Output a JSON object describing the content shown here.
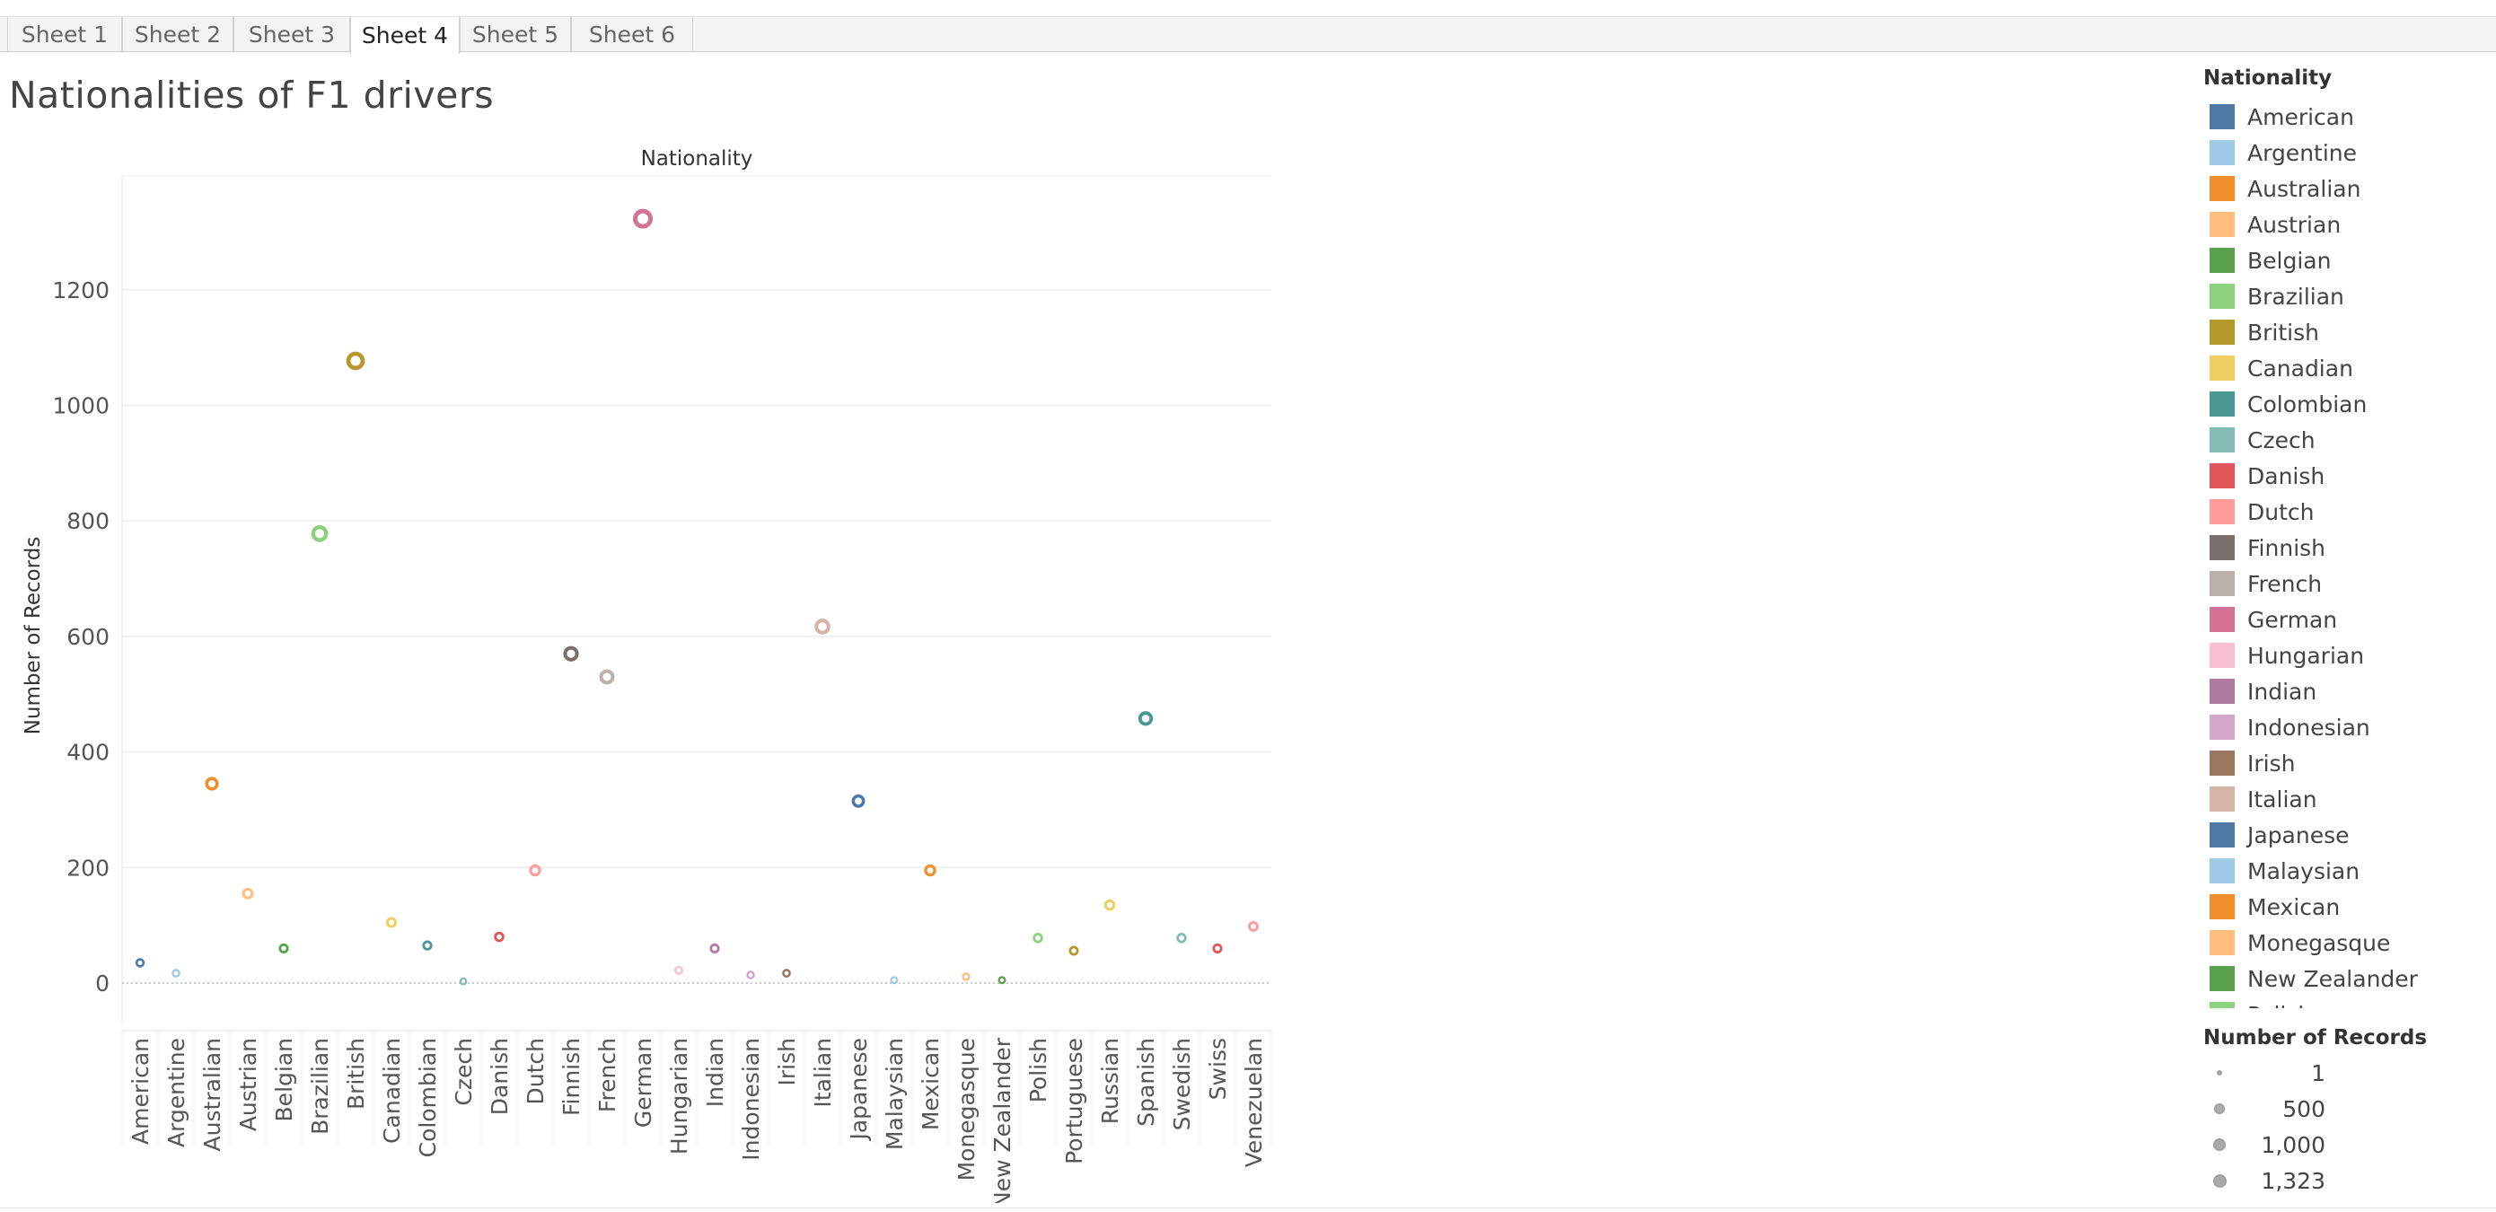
{
  "tabs": [
    {
      "label": "Sheet 1",
      "active": false
    },
    {
      "label": "Sheet 2",
      "active": false
    },
    {
      "label": "Sheet 3",
      "active": false
    },
    {
      "label": "Sheet 4",
      "active": true
    },
    {
      "label": "Sheet 5",
      "active": false
    },
    {
      "label": "Sheet 6",
      "active": false
    }
  ],
  "title": "Nationalities of F1 drivers",
  "chart_data": {
    "type": "scatter",
    "title": "Nationalities of F1 drivers",
    "column_header": "Nationality",
    "ylabel": "Number of Records",
    "ylim": [
      -70,
      1400
    ],
    "yticks": [
      0,
      200,
      400,
      600,
      800,
      1000,
      1200
    ],
    "grid": true,
    "marker_size_encodes": "Number of Records",
    "categories": [
      "American",
      "Argentine",
      "Australian",
      "Austrian",
      "Belgian",
      "Brazilian",
      "British",
      "Canadian",
      "Colombian",
      "Czech",
      "Danish",
      "Dutch",
      "Finnish",
      "French",
      "German",
      "Hungarian",
      "Indian",
      "Indonesian",
      "Irish",
      "Italian",
      "Japanese",
      "Malaysian",
      "Mexican",
      "Monegasque",
      "New Zealander",
      "Polish",
      "Portuguese",
      "Russian",
      "Spanish",
      "Swedish",
      "Swiss",
      "Venezuelan"
    ],
    "values": [
      35,
      17,
      345,
      155,
      60,
      778,
      1077,
      105,
      65,
      3,
      80,
      195,
      570,
      530,
      1323,
      22,
      60,
      14,
      17,
      617,
      315,
      5,
      195,
      11,
      5,
      78,
      56,
      135,
      458,
      78,
      60,
      98
    ],
    "colors": [
      "#4e79a7",
      "#a0cbe8",
      "#f28e2b",
      "#ffbe7d",
      "#59a14f",
      "#8cd17d",
      "#b6992d",
      "#f1ce63",
      "#499894",
      "#86bcb6",
      "#e15759",
      "#ff9d9a",
      "#79706e",
      "#bab0ac",
      "#d37295",
      "#fabfd2",
      "#b07aa1",
      "#d4a6c8",
      "#9d7660",
      "#d7b5a6",
      "#4e79a7",
      "#a0cbe8",
      "#f28e2b",
      "#ffbe7d",
      "#59a14f",
      "#8cd17d",
      "#b6992d",
      "#f1ce63",
      "#499894",
      "#86bcb6",
      "#e15759",
      "#ff9d9a"
    ]
  },
  "legend": {
    "nationality_title": "Nationality",
    "nationality_items": [
      "American",
      "Argentine",
      "Australian",
      "Austrian",
      "Belgian",
      "Brazilian",
      "British",
      "Canadian",
      "Colombian",
      "Czech",
      "Danish",
      "Dutch",
      "Finnish",
      "French",
      "German",
      "Hungarian",
      "Indian",
      "Indonesian",
      "Irish",
      "Italian",
      "Japanese",
      "Malaysian",
      "Mexican",
      "Monegasque",
      "New Zealander",
      "Polish"
    ],
    "size_title": "Number of Records",
    "size_items": [
      {
        "label": "1",
        "value": 1
      },
      {
        "label": "500",
        "value": 500
      },
      {
        "label": "1,000",
        "value": 1000
      },
      {
        "label": "1,323",
        "value": 1323
      }
    ]
  }
}
